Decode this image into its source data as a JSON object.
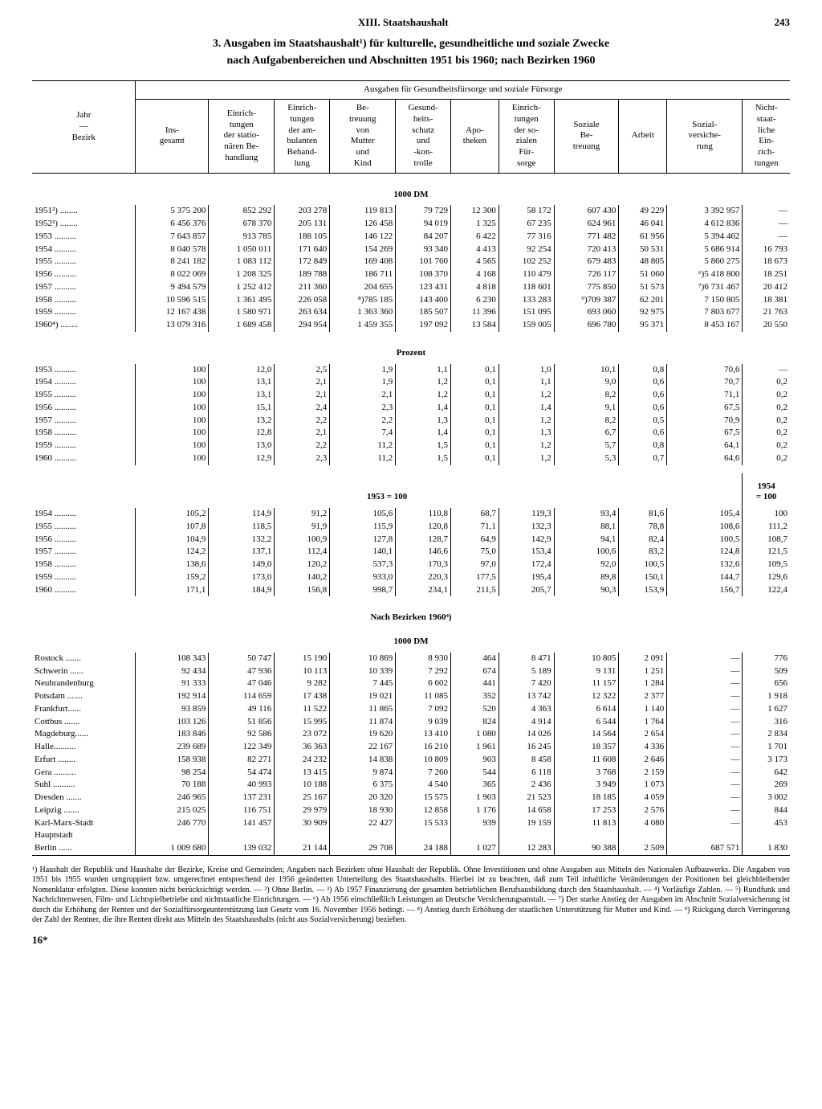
{
  "header": {
    "chapter": "XIII. Staatshaushalt",
    "page": "243"
  },
  "title_l1": "3. Ausgaben im Staatshaushalt¹) für kulturelle, gesundheitliche und soziale Zwecke",
  "title_l2": "nach Aufgabenbereichen und Abschnitten 1951 bis 1960; nach Bezirken 1960",
  "spanner": "Ausgaben für Gesundheitsfürsorge und soziale Fürsorge",
  "col_stub": "Jahr\n—\nBezirk",
  "cols": {
    "c1": "Ins-\ngesamt",
    "c2": "Einrich-\ntungen\nder statio-\nnären Be-\nhandlung",
    "c3": "Einrich-\ntungen\nder am-\nbulanten\nBehand-\nlung",
    "c4": "Be-\ntreuung\nvon\nMutter\nund\nKind",
    "c5": "Gesund-\nheits-\nschutz\nund\n-kon-\ntrolle",
    "c6": "Apo-\ntheken",
    "c7": "Einrich-\ntungen\nder so-\nzialen\nFür-\nsorge",
    "c8": "Soziale\nBe-\ntreuung",
    "c9": "Arbeit",
    "c10": "Sozial-\nversiche-\nrung",
    "c11": "Nicht-\nstaat-\nliche\nEin-\nrich-\ntungen"
  },
  "sections": {
    "s1": "1000 DM",
    "s2": "Prozent",
    "s3": "1953 = 100",
    "s3r": "1954\n= 100",
    "s4a": "Nach Bezirken 1960⁴)",
    "s4b": "1000 DM"
  },
  "years_abs": [
    {
      "y": "1951²) ........",
      "v": [
        "5 375 200",
        "852 292",
        "203 278",
        "119 813",
        "79 729",
        "12 300",
        "58 172",
        "607 430",
        "49 229",
        "3 392 957",
        "—"
      ]
    },
    {
      "y": "1952²) ........",
      "v": [
        "6 456 376",
        "678 370",
        "205 131",
        "126 458",
        "94 019",
        "1 325",
        "67 235",
        "624 961",
        "46 041",
        "4 612 836",
        "—"
      ]
    },
    {
      "y": "1953 ..........",
      "v": [
        "7 643 857",
        "913 785",
        "188 105",
        "146 122",
        "84 207",
        "6 422",
        "77 316",
        "771 482",
        "61 956",
        "5 394 462",
        "—"
      ]
    },
    {
      "y": "1954 ..........",
      "v": [
        "8 040 578",
        "1 050 011",
        "171 640",
        "154 269",
        "93 340",
        "4 413",
        "92 254",
        "720 413",
        "50 531",
        "5 686 914",
        "16 793"
      ]
    },
    {
      "y": "1955 ..........",
      "v": [
        "8 241 182",
        "1 083 112",
        "172 849",
        "169 408",
        "101 760",
        "4 565",
        "102 252",
        "679 483",
        "48 805",
        "5 860 275",
        "18 673"
      ]
    },
    {
      "y": "1956 ..........",
      "v": [
        "8 022 069",
        "1 208 325",
        "189 788",
        "186 711",
        "108 370",
        "4 168",
        "110 479",
        "726 117",
        "51 060",
        "⁶)5 418 800",
        "18 251"
      ]
    },
    {
      "y": "1957 ..........",
      "v": [
        "9 494 579",
        "1 252 412",
        "211 360",
        "204 655",
        "123 431",
        "4 818",
        "118 601",
        "775 850",
        "51 573",
        "⁷)6 731 467",
        "20 412"
      ]
    },
    {
      "y": "1958 ..........",
      "v": [
        "10 596 515",
        "1 361 495",
        "226 058",
        "⁸)785 185",
        "143 400",
        "6 230",
        "133 283",
        "⁹)709 387",
        "62 201",
        "7 150 805",
        "18 381"
      ]
    },
    {
      "y": "1959 ..........",
      "v": [
        "12 167 438",
        "1 580 971",
        "263 634",
        "1 363 360",
        "185 507",
        "11 396",
        "151 095",
        "693 060",
        "92 975",
        "7 803 677",
        "21 763"
      ]
    },
    {
      "y": "1960⁴) ........",
      "v": [
        "13 079 316",
        "1 689 458",
        "294 954",
        "1 459 355",
        "197 092",
        "13 584",
        "159 005",
        "696 780",
        "95 371",
        "8 453 167",
        "20 550"
      ]
    }
  ],
  "years_pct": [
    {
      "y": "1953 ..........",
      "v": [
        "100",
        "12,0",
        "2,5",
        "1,9",
        "1,1",
        "0,1",
        "1,0",
        "10,1",
        "0,8",
        "70,6",
        "—"
      ]
    },
    {
      "y": "1954 ..........",
      "v": [
        "100",
        "13,1",
        "2,1",
        "1,9",
        "1,2",
        "0,1",
        "1,1",
        "9,0",
        "0,6",
        "70,7",
        "0,2"
      ]
    },
    {
      "y": "1955 ..........",
      "v": [
        "100",
        "13,1",
        "2,1",
        "2,1",
        "1,2",
        "0,1",
        "1,2",
        "8,2",
        "0,6",
        "71,1",
        "0,2"
      ]
    },
    {
      "y": "1956 ..........",
      "v": [
        "100",
        "15,1",
        "2,4",
        "2,3",
        "1,4",
        "0,1",
        "1,4",
        "9,1",
        "0,6",
        "67,5",
        "0,2"
      ]
    },
    {
      "y": "1957 ..........",
      "v": [
        "100",
        "13,2",
        "2,2",
        "2,2",
        "1,3",
        "0,1",
        "1,2",
        "8,2",
        "0,5",
        "70,9",
        "0,2"
      ]
    },
    {
      "y": "1958 ..........",
      "v": [
        "100",
        "12,8",
        "2,1",
        "7,4",
        "1,4",
        "0,1",
        "1,3",
        "6,7",
        "0,6",
        "67,5",
        "0,2"
      ]
    },
    {
      "y": "1959 ..........",
      "v": [
        "100",
        "13,0",
        "2,2",
        "11,2",
        "1,5",
        "0,1",
        "1,2",
        "5,7",
        "0,8",
        "64,1",
        "0,2"
      ]
    },
    {
      "y": "1960 ..........",
      "v": [
        "100",
        "12,9",
        "2,3",
        "11,2",
        "1,5",
        "0,1",
        "1,2",
        "5,3",
        "0,7",
        "64,6",
        "0,2"
      ]
    }
  ],
  "years_idx": [
    {
      "y": "1954 ..........",
      "v": [
        "105,2",
        "114,9",
        "91,2",
        "105,6",
        "110,8",
        "68,7",
        "119,3",
        "93,4",
        "81,6",
        "105,4",
        "100"
      ]
    },
    {
      "y": "1955 ..........",
      "v": [
        "107,8",
        "118,5",
        "91,9",
        "115,9",
        "120,8",
        "71,1",
        "132,3",
        "88,1",
        "78,8",
        "108,6",
        "111,2"
      ]
    },
    {
      "y": "1956 ..........",
      "v": [
        "104,9",
        "132,2",
        "100,9",
        "127,8",
        "128,7",
        "64,9",
        "142,9",
        "94,1",
        "82,4",
        "100,5",
        "108,7"
      ]
    },
    {
      "y": "1957 ..........",
      "v": [
        "124,2",
        "137,1",
        "112,4",
        "140,1",
        "146,6",
        "75,0",
        "153,4",
        "100,6",
        "83,2",
        "124,8",
        "121,5"
      ]
    },
    {
      "y": "1958 ..........",
      "v": [
        "138,6",
        "149,0",
        "120,2",
        "537,3",
        "170,3",
        "97,0",
        "172,4",
        "92,0",
        "100,5",
        "132,6",
        "109,5"
      ]
    },
    {
      "y": "1959 ..........",
      "v": [
        "159,2",
        "173,0",
        "140,2",
        "933,0",
        "220,3",
        "177,5",
        "195,4",
        "89,8",
        "150,1",
        "144,7",
        "129,6"
      ]
    },
    {
      "y": "1960 ..........",
      "v": [
        "171,1",
        "184,9",
        "156,8",
        "998,7",
        "234,1",
        "211,5",
        "205,7",
        "90,3",
        "153,9",
        "156,7",
        "122,4"
      ]
    }
  ],
  "bezirke": [
    {
      "y": "Rostock .......",
      "v": [
        "108 343",
        "50 747",
        "15 190",
        "10 869",
        "8 930",
        "464",
        "8 471",
        "10 805",
        "2 091",
        "—",
        "776"
      ]
    },
    {
      "y": "Schwerin ......",
      "v": [
        "92 434",
        "47 936",
        "10 113",
        "10 339",
        "7 292",
        "674",
        "5 189",
        "9 131",
        "1 251",
        "—",
        "509"
      ]
    },
    {
      "y": "Neubrandenburg",
      "v": [
        "91 333",
        "47 046",
        "9 282",
        "7 445",
        "6 602",
        "441",
        "7 420",
        "11 157",
        "1 284",
        "—",
        "656"
      ]
    },
    {
      "y": "Potsdam .......",
      "v": [
        "192 914",
        "114 659",
        "17 438",
        "19 021",
        "11 085",
        "352",
        "13 742",
        "12 322",
        "2 377",
        "—",
        "1 918"
      ]
    },
    {
      "y": "Frankfurt......",
      "v": [
        "93 859",
        "49 116",
        "11 522",
        "11 865",
        "7 092",
        "520",
        "4 363",
        "6 614",
        "1 140",
        "—",
        "1 627"
      ]
    },
    {
      "y": "Cottbus .......",
      "v": [
        "103 126",
        "51 856",
        "15 995",
        "11 874",
        "9 039",
        "824",
        "4 914",
        "6 544",
        "1 764",
        "—",
        "316"
      ]
    },
    {
      "y": "Magdeburg......",
      "v": [
        "183 846",
        "92 586",
        "23 072",
        "19 620",
        "13 410",
        "1 080",
        "14 026",
        "14 564",
        "2 654",
        "—",
        "2 834"
      ]
    },
    {
      "y": "Halle..........",
      "v": [
        "239 689",
        "122 349",
        "36 363",
        "22 167",
        "16 210",
        "1 961",
        "16 245",
        "18 357",
        "4 336",
        "—",
        "1 701"
      ]
    },
    {
      "y": "Erfurt ........",
      "v": [
        "158 938",
        "82 271",
        "24 232",
        "14 838",
        "10 809",
        "903",
        "8 458",
        "11 608",
        "2 646",
        "—",
        "3 173"
      ]
    },
    {
      "y": "Gera ..........",
      "v": [
        "98 254",
        "54 474",
        "13 415",
        "9 874",
        "7 260",
        "544",
        "6 118",
        "3 768",
        "2 159",
        "—",
        "642"
      ]
    },
    {
      "y": "Suhl ..........",
      "v": [
        "70 188",
        "40 993",
        "10 188",
        "6 375",
        "4 540",
        "365",
        "2 436",
        "3 949",
        "1 073",
        "—",
        "269"
      ]
    },
    {
      "y": "Dresden .......",
      "v": [
        "246 965",
        "137 231",
        "25 167",
        "20 320",
        "15 575",
        "1 903",
        "21 523",
        "18 185",
        "4 059",
        "—",
        "3 002"
      ]
    },
    {
      "y": "Leipzig .......",
      "v": [
        "215 025",
        "116 751",
        "29 979",
        "18 930",
        "12 858",
        "1 176",
        "14 658",
        "17 253",
        "2 576",
        "—",
        "844"
      ]
    },
    {
      "y": "Karl-Marx-Stadt",
      "v": [
        "246 770",
        "141 457",
        "30 909",
        "22 427",
        "15 533",
        "939",
        "19 159",
        "11 813",
        "4 080",
        "—",
        "453"
      ]
    }
  ],
  "hauptstadt_label": "Hauptstadt",
  "berlin": {
    "y": "  Berlin ......",
    "v": [
      "1 009 680",
      "139 032",
      "21 144",
      "29 708",
      "24 188",
      "1 027",
      "12 283",
      "90 388",
      "2 509",
      "687 571",
      "1 830"
    ]
  },
  "footnote": "¹) Haushalt der Republik und Haushalte der Bezirke, Kreise und Gemeinden; Angaben nach Bezirken ohne Haushalt der Republik. Ohne Investitionen und ohne Ausgaben aus Mitteln des Nationalen Aufbauwerks. Die Angaben von 1951 bis 1955 wurden umgruppiert bzw. umgerechnet entsprechend der 1956 geänderten Unterteilung des Staatshaushalts. Hierbei ist zu beachten, daß zum Teil inhaltliche Veränderungen der Positionen bei gleichbleibender Nomenklatur erfolgten. Diese konnten nicht berücksichtigt werden. — ²) Ohne Berlin. — ³) Ab 1957 Finanzierung der gesamten betrieblichen Berufsausbildung durch den Staatshaushalt. — ⁴) Vorläufige Zahlen. — ⁵) Rundfunk und Nachrichtenwesen, Film- und Lichtspielbetriebe und nichtstaatliche Einrichtungen. — ⁶) Ab 1956 einschließlich Leistungen an Deutsche Versicherungsanstalt. — ⁷) Der starke Anstieg der Ausgaben im Abschnitt Sozialversicherung ist durch die Erhöhung der Renten und der Sozialfürsorgeunterstützung laut Gesetz vom 16. November 1956 bedingt. — ⁸) Anstieg durch Erhöhung der staatlichen Unterstützung für Mutter und Kind. — ⁹) Rückgang durch Verringerung der Zahl der Rentner, die ihre Renten direkt aus Mitteln des Staatshaushalts (nicht aus Sozialversicherung) beziehen.",
  "pagefoot": "16*"
}
